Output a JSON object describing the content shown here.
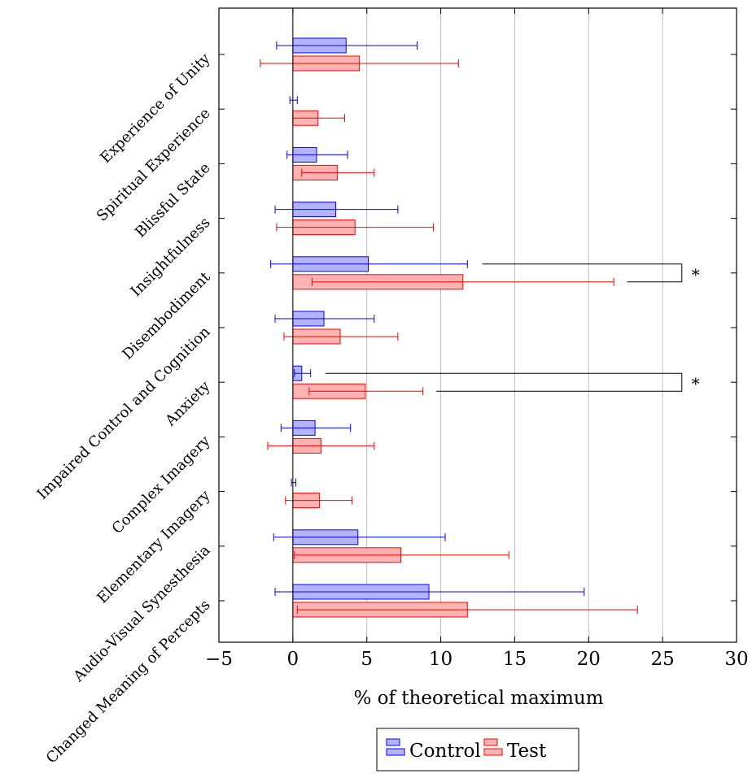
{
  "chart_data": {
    "type": "bar",
    "orientation": "horizontal",
    "xlabel": "% of theoretical maximum",
    "xlim": [
      -5,
      30
    ],
    "xticks": [
      -5,
      0,
      5,
      10,
      15,
      20,
      25,
      30
    ],
    "xtick_labels": [
      "−5",
      "0",
      "5",
      "10",
      "15",
      "20",
      "25",
      "30"
    ],
    "grid": "vertical",
    "legend_position": "bottom-center",
    "categories": [
      "Experience of Unity",
      "Spiritual Experience",
      "Blissful State",
      "Insightfulness",
      "Disembodiment",
      "Impaired Control and Cognition",
      "Anxiety",
      "Complex Imagery",
      "Elementary Imagery",
      "Audio-Visual Synesthesia",
      "Changed Meaning of Percepts"
    ],
    "series": [
      {
        "name": "Control",
        "color": "#0000ff",
        "fill": "#b3b3ff",
        "values": [
          3.6,
          0.0,
          1.6,
          2.9,
          5.1,
          2.1,
          0.6,
          1.5,
          0.0,
          4.4,
          9.2
        ],
        "error_low": [
          -1.1,
          -0.2,
          -0.4,
          -1.2,
          -1.5,
          -1.2,
          0.1,
          -0.8,
          -0.1,
          -1.3,
          -1.2
        ],
        "error_high": [
          8.4,
          0.3,
          3.7,
          7.1,
          11.8,
          5.5,
          1.2,
          3.9,
          0.2,
          10.3,
          19.7
        ]
      },
      {
        "name": "Test",
        "color": "#ff0000",
        "fill": "#ffb3b3",
        "values": [
          4.5,
          1.7,
          3.0,
          4.2,
          11.5,
          3.2,
          4.9,
          1.9,
          1.8,
          7.3,
          11.8
        ],
        "error_low": [
          -2.2,
          0.0,
          0.6,
          -1.1,
          1.3,
          -0.6,
          1.1,
          -1.7,
          -0.5,
          0.1,
          0.3
        ],
        "error_high": [
          11.2,
          3.5,
          5.5,
          9.5,
          21.7,
          7.1,
          8.8,
          5.5,
          4.0,
          14.6,
          23.3
        ]
      }
    ],
    "significance": [
      {
        "category_index": 4,
        "label": "*",
        "start_control": 12.8,
        "start_test": 22.6,
        "end": 26.3
      },
      {
        "category_index": 6,
        "label": "*",
        "start_control": 2.2,
        "start_test": 9.7,
        "end": 26.3
      }
    ]
  }
}
